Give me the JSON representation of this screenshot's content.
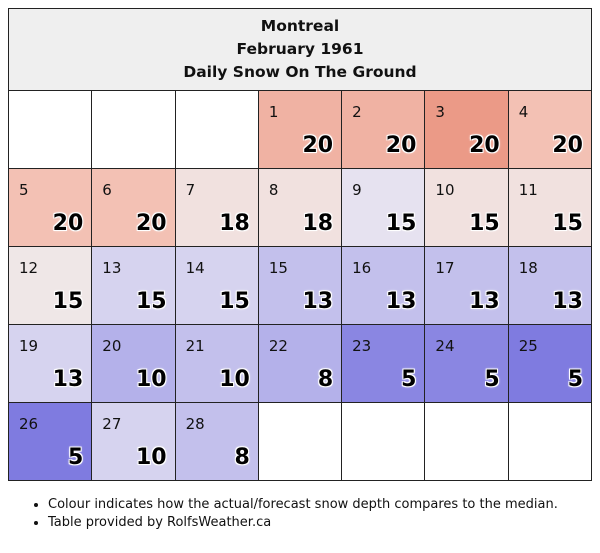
{
  "header": {
    "city": "Montreal",
    "month": "February 1961",
    "subtitle": "Daily Snow On The Ground"
  },
  "weeks": [
    [
      null,
      null,
      null,
      {
        "day": "1",
        "value": "20",
        "color": "#f0b2a3"
      },
      {
        "day": "2",
        "value": "20",
        "color": "#f0b2a3"
      },
      {
        "day": "3",
        "value": "20",
        "color": "#eb9a87"
      },
      {
        "day": "4",
        "value": "20",
        "color": "#f3c1b4"
      }
    ],
    [
      {
        "day": "5",
        "value": "20",
        "color": "#f3c1b4"
      },
      {
        "day": "6",
        "value": "20",
        "color": "#f3c1b4"
      },
      {
        "day": "7",
        "value": "18",
        "color": "#f1e1df"
      },
      {
        "day": "8",
        "value": "18",
        "color": "#f1e1df"
      },
      {
        "day": "9",
        "value": "15",
        "color": "#e6e2f0"
      },
      {
        "day": "10",
        "value": "15",
        "color": "#f1e1df"
      },
      {
        "day": "11",
        "value": "15",
        "color": "#f1e1df"
      }
    ],
    [
      {
        "day": "12",
        "value": "15",
        "color": "#efe7e7"
      },
      {
        "day": "13",
        "value": "15",
        "color": "#d6d3ef"
      },
      {
        "day": "14",
        "value": "15",
        "color": "#d6d3ef"
      },
      {
        "day": "15",
        "value": "13",
        "color": "#c3c0ec"
      },
      {
        "day": "16",
        "value": "13",
        "color": "#c3c0ec"
      },
      {
        "day": "17",
        "value": "13",
        "color": "#c3c0ec"
      },
      {
        "day": "18",
        "value": "13",
        "color": "#c3c0ec"
      }
    ],
    [
      {
        "day": "19",
        "value": "13",
        "color": "#d6d3ef"
      },
      {
        "day": "20",
        "value": "10",
        "color": "#b4b1ea"
      },
      {
        "day": "21",
        "value": "10",
        "color": "#c3c0ec"
      },
      {
        "day": "22",
        "value": "8",
        "color": "#b4b1ea"
      },
      {
        "day": "23",
        "value": "5",
        "color": "#8a86e2"
      },
      {
        "day": "24",
        "value": "5",
        "color": "#8a86e2"
      },
      {
        "day": "25",
        "value": "5",
        "color": "#7f7be0"
      }
    ],
    [
      {
        "day": "26",
        "value": "5",
        "color": "#7f7be0"
      },
      {
        "day": "27",
        "value": "10",
        "color": "#d6d3ef"
      },
      {
        "day": "28",
        "value": "8",
        "color": "#c3c0ec"
      },
      null,
      null,
      null,
      null
    ]
  ],
  "notes": [
    "Colour indicates how the actual/forecast snow depth compares to the median.",
    "Table provided by RolfsWeather.ca"
  ]
}
